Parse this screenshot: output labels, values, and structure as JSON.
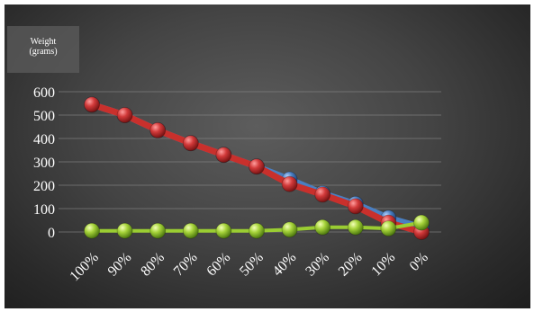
{
  "chart_data": {
    "type": "line",
    "title": "",
    "xlabel": "",
    "ylabel": "Weight (grams)",
    "ylabel_lines": [
      "Weight",
      "(grams)"
    ],
    "categories": [
      "100%",
      "90%",
      "80%",
      "70%",
      "60%",
      "50%",
      "40%",
      "30%",
      "20%",
      "10%",
      "0%"
    ],
    "ylim": [
      0,
      600
    ],
    "yticks": [
      0,
      100,
      200,
      300,
      400,
      500,
      600
    ],
    "grid": true,
    "legend": "none",
    "series": [
      {
        "color": "#4a7fc1",
        "values": [
          545,
          500,
          435,
          380,
          330,
          280,
          225,
          165,
          120,
          60,
          20
        ]
      },
      {
        "color": "#c9302c",
        "values": [
          545,
          500,
          435,
          380,
          330,
          280,
          205,
          160,
          110,
          40,
          0
        ]
      },
      {
        "color": "#9acd32",
        "values": [
          5,
          5,
          5,
          5,
          5,
          5,
          10,
          20,
          20,
          15,
          40
        ]
      }
    ]
  }
}
